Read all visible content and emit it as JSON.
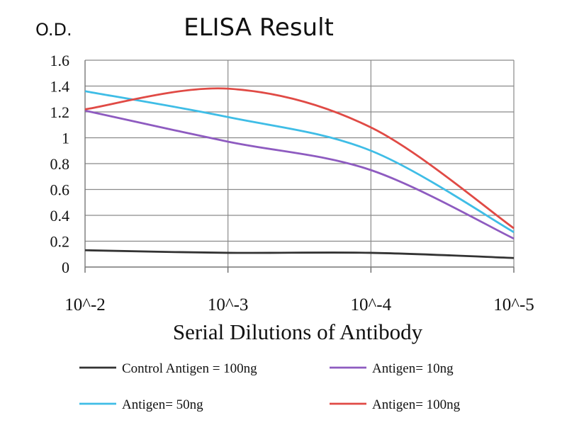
{
  "chart_data": {
    "type": "line",
    "title": "ELISA Result",
    "ylabel": "O.D.",
    "xlabel": "Serial Dilutions of Antibody",
    "categories": [
      "10^-2",
      "10^-3",
      "10^-4",
      "10^-5"
    ],
    "yticks": [
      "0",
      "0.2",
      "0.4",
      "0.6",
      "0.8",
      "1",
      "1.2",
      "1.4",
      "1.6"
    ],
    "ylim": [
      0,
      1.6
    ],
    "grid": true,
    "legend_position": "bottom",
    "series": [
      {
        "name": "Control Antigen = 100ng",
        "color": "#333333",
        "values": [
          0.13,
          0.11,
          0.11,
          0.07
        ]
      },
      {
        "name": "Antigen= 10ng",
        "color": "#8e5bc0",
        "values": [
          1.21,
          0.97,
          0.75,
          0.22
        ]
      },
      {
        "name": "Antigen= 50ng",
        "color": "#3fbde6",
        "values": [
          1.36,
          1.16,
          0.9,
          0.27
        ]
      },
      {
        "name": "Antigen= 100ng",
        "color": "#e04a45",
        "values": [
          1.22,
          1.38,
          1.08,
          0.3
        ]
      }
    ]
  }
}
